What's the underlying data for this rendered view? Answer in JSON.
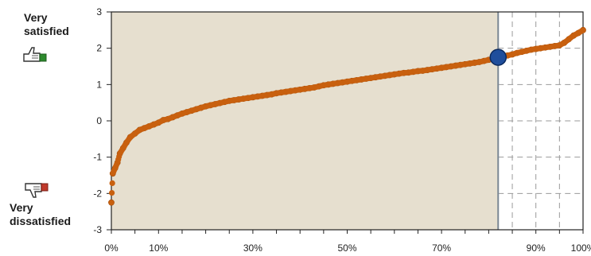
{
  "chart_data": {
    "type": "scatter",
    "title": "",
    "xlabel": "",
    "ylabel": "",
    "xlim": [
      0,
      100
    ],
    "ylim": [
      -3,
      3
    ],
    "y_ticks": [
      3,
      2,
      1,
      0,
      -1,
      -2,
      -3
    ],
    "y_tick_labels": [
      "3",
      "2",
      "1",
      "0",
      "-1",
      "-2",
      "-3"
    ],
    "x_tick_labels": [
      {
        "x": 0,
        "label": "0%"
      },
      {
        "x": 10,
        "label": "10%"
      },
      {
        "x": 30,
        "label": "30%"
      },
      {
        "x": 50,
        "label": "50%"
      },
      {
        "x": 70,
        "label": "70%"
      },
      {
        "x": 90,
        "label": "90%"
      },
      {
        "x": 100,
        "label": "100%"
      }
    ],
    "x_minor_ticks": [
      0,
      5,
      10,
      15,
      20,
      25,
      30,
      35,
      40,
      45,
      50,
      55,
      60,
      65,
      70,
      75,
      80,
      85,
      90,
      95,
      100
    ],
    "shaded_region": {
      "x_from": 0,
      "x_to": 82,
      "color": "#e6dfcf"
    },
    "grid_dashed_x": [
      85,
      90,
      95
    ],
    "grid_dashed_y": [
      2,
      1,
      0,
      -1,
      -2
    ],
    "marker_line_x": 82,
    "highlight_point": {
      "x": 82,
      "y": 1.75,
      "color": "#1f4e9c"
    },
    "series": [
      {
        "color": "#c8600f",
        "points": [
          [
            0,
            -2.25
          ],
          [
            0.3,
            -1.45
          ],
          [
            0.8,
            -1.3
          ],
          [
            1.3,
            -1.15
          ],
          [
            1.8,
            -0.9
          ],
          [
            2.5,
            -0.75
          ],
          [
            3.2,
            -0.6
          ],
          [
            4,
            -0.45
          ],
          [
            5,
            -0.35
          ],
          [
            6,
            -0.25
          ],
          [
            7,
            -0.2
          ],
          [
            8,
            -0.15
          ],
          [
            9,
            -0.1
          ],
          [
            10,
            -0.05
          ],
          [
            11,
            0.02
          ],
          [
            12,
            0.05
          ],
          [
            13,
            0.1
          ],
          [
            14,
            0.15
          ],
          [
            15,
            0.2
          ],
          [
            16,
            0.24
          ],
          [
            17,
            0.28
          ],
          [
            18,
            0.32
          ],
          [
            19,
            0.36
          ],
          [
            20,
            0.4
          ],
          [
            21,
            0.43
          ],
          [
            22,
            0.46
          ],
          [
            23,
            0.49
          ],
          [
            24,
            0.52
          ],
          [
            25,
            0.55
          ],
          [
            26,
            0.57
          ],
          [
            27,
            0.59
          ],
          [
            28,
            0.61
          ],
          [
            29,
            0.63
          ],
          [
            30,
            0.65
          ],
          [
            31,
            0.67
          ],
          [
            32,
            0.69
          ],
          [
            33,
            0.71
          ],
          [
            34,
            0.73
          ],
          [
            35,
            0.76
          ],
          [
            36,
            0.78
          ],
          [
            37,
            0.8
          ],
          [
            38,
            0.82
          ],
          [
            39,
            0.84
          ],
          [
            40,
            0.86
          ],
          [
            41,
            0.88
          ],
          [
            42,
            0.9
          ],
          [
            43,
            0.92
          ],
          [
            44,
            0.95
          ],
          [
            45,
            0.98
          ],
          [
            46,
            1.0
          ],
          [
            47,
            1.02
          ],
          [
            48,
            1.04
          ],
          [
            49,
            1.06
          ],
          [
            50,
            1.08
          ],
          [
            51,
            1.1
          ],
          [
            52,
            1.12
          ],
          [
            53,
            1.14
          ],
          [
            54,
            1.16
          ],
          [
            55,
            1.18
          ],
          [
            56,
            1.2
          ],
          [
            57,
            1.22
          ],
          [
            58,
            1.24
          ],
          [
            59,
            1.26
          ],
          [
            60,
            1.28
          ],
          [
            61,
            1.3
          ],
          [
            62,
            1.32
          ],
          [
            63,
            1.33
          ],
          [
            64,
            1.35
          ],
          [
            65,
            1.37
          ],
          [
            66,
            1.38
          ],
          [
            67,
            1.4
          ],
          [
            68,
            1.42
          ],
          [
            69,
            1.44
          ],
          [
            70,
            1.46
          ],
          [
            71,
            1.48
          ],
          [
            72,
            1.5
          ],
          [
            73,
            1.52
          ],
          [
            74,
            1.54
          ],
          [
            75,
            1.56
          ],
          [
            76,
            1.58
          ],
          [
            77,
            1.6
          ],
          [
            78,
            1.62
          ],
          [
            79,
            1.65
          ],
          [
            80,
            1.68
          ],
          [
            81,
            1.71
          ],
          [
            82,
            1.75
          ],
          [
            83,
            1.78
          ],
          [
            84,
            1.8
          ],
          [
            85,
            1.83
          ],
          [
            86,
            1.87
          ],
          [
            87,
            1.9
          ],
          [
            88,
            1.93
          ],
          [
            89,
            1.96
          ],
          [
            90,
            1.98
          ],
          [
            91,
            2.0
          ],
          [
            92,
            2.02
          ],
          [
            93,
            2.04
          ],
          [
            94,
            2.06
          ],
          [
            95,
            2.08
          ],
          [
            96,
            2.15
          ],
          [
            97,
            2.25
          ],
          [
            98,
            2.35
          ],
          [
            99,
            2.42
          ],
          [
            100,
            2.5
          ]
        ]
      }
    ]
  },
  "labels": {
    "very_satisfied": "Very satisfied",
    "very_dissatisfied": "Very dissatisfied"
  },
  "icons": {
    "thumbs_up": "thumbs-up-icon",
    "thumbs_down": "thumbs-down-icon"
  }
}
